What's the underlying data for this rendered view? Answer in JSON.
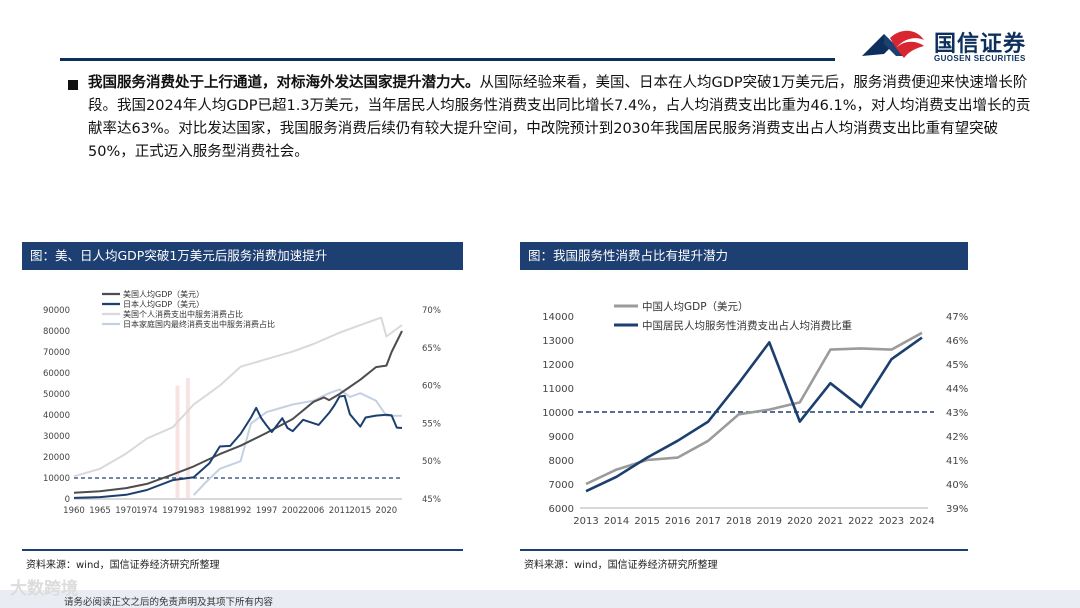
{
  "header": {
    "logo_cn": "国信证券",
    "logo_en": "GUOSEN SECURITIES",
    "logo_colors": {
      "blue": "#0d2f5c",
      "red": "#d7262f"
    }
  },
  "body": {
    "lead": "我国服务消费处于上行通道，对标海外发达国家提升潜力大。",
    "text": "从国际经验来看，美国、日本在人均GDP突破1万美元后，服务消费便迎来快速增长阶段。我国2024年人均GDP已超1.3万美元，当年居民人均服务性消费支出同比增长7.4%，占人均消费支出比重为46.1%，对人均消费支出增长的贡献率达63%。对比发达国家，我国服务消费后续仍有较大提升空间，中改院预计到2030年我国居民服务消费支出占人均消费支出比重有望突破50%，正式迈入服务型消费社会。"
  },
  "left_panel": {
    "title": "图：美、日人均GDP突破1万美元后服务消费加速提升",
    "source": "资料来源：wind，国信证券经济研究所整理"
  },
  "right_panel": {
    "title": "图：我国服务性消费占比有提升潜力",
    "source": "资料来源：wind，国信证券经济研究所整理"
  },
  "footer": {
    "note": "请务必阅读正文之后的免责声明及其项下所有内容",
    "watermark": "大数跨境"
  },
  "colors": {
    "navy": "#1e3f72",
    "dark_gray": "#4d4d4d",
    "light_gray": "#9b9b9b",
    "pale_gray": "#d9d9d9",
    "dark_blue": "#1b3f6e",
    "pale_blue": "#c4d1e3",
    "dash": "#1e3f72"
  },
  "chart_data": [
    {
      "type": "line",
      "title": "",
      "x_ticks": [
        "1960",
        "1965",
        "1970",
        "1974",
        "1979",
        "1983",
        "1988",
        "1992",
        "1997",
        "2002",
        "2006",
        "2011",
        "2015",
        "2020"
      ],
      "xlim": [
        1960,
        2023
      ],
      "y_left": {
        "ticks": [
          "0",
          "10000",
          "20000",
          "30000",
          "40000",
          "50000",
          "60000",
          "70000",
          "80000",
          "90000"
        ],
        "ylim": [
          0,
          90000
        ]
      },
      "y_right": {
        "ticks": [
          "45%",
          "50%",
          "55%",
          "60%",
          "65%",
          "70%"
        ],
        "ylim": [
          45,
          70
        ]
      },
      "reference_line_left": 10000,
      "legend": [
        {
          "name": "美国人均GDP（美元）",
          "color": "#4d4d4d"
        },
        {
          "name": "日本人均GDP（美元）",
          "color": "#1b3f6e"
        },
        {
          "name": "美国个人消费支出中服务消费占比",
          "color": "#d9d9d9"
        },
        {
          "name": "日本家庭国内最终消费支出中服务消费占比",
          "color": "#c4d1e3"
        }
      ],
      "series": [
        {
          "name": "美国人均GDP（美元）",
          "axis": "left",
          "points": [
            [
              1960,
              3000
            ],
            [
              1965,
              3700
            ],
            [
              1970,
              5200
            ],
            [
              1974,
              7200
            ],
            [
              1979,
              11700
            ],
            [
              1983,
              15500
            ],
            [
              1988,
              21400
            ],
            [
              1992,
              25400
            ],
            [
              1997,
              31500
            ],
            [
              2002,
              38100
            ],
            [
              2006,
              46300
            ],
            [
              2008,
              48400
            ],
            [
              2009,
              47100
            ],
            [
              2011,
              50000
            ],
            [
              2015,
              56800
            ],
            [
              2018,
              62800
            ],
            [
              2020,
              63500
            ],
            [
              2021,
              70000
            ],
            [
              2023,
              80000
            ]
          ]
        },
        {
          "name": "日本人均GDP（美元）",
          "axis": "left",
          "points": [
            [
              1960,
              500
            ],
            [
              1965,
              900
            ],
            [
              1970,
              2000
            ],
            [
              1974,
              4300
            ],
            [
              1979,
              9000
            ],
            [
              1983,
              10400
            ],
            [
              1986,
              17000
            ],
            [
              1988,
              25000
            ],
            [
              1990,
              25300
            ],
            [
              1992,
              31000
            ],
            [
              1994,
              38800
            ],
            [
              1995,
              43400
            ],
            [
              1996,
              38400
            ],
            [
              1997,
              35000
            ],
            [
              1998,
              31900
            ],
            [
              2000,
              38500
            ],
            [
              2001,
              33800
            ],
            [
              2002,
              32300
            ],
            [
              2004,
              37700
            ],
            [
              2007,
              35300
            ],
            [
              2009,
              41000
            ],
            [
              2010,
              44500
            ],
            [
              2011,
              48800
            ],
            [
              2012,
              49100
            ],
            [
              2013,
              40400
            ],
            [
              2015,
              34500
            ],
            [
              2016,
              38800
            ],
            [
              2018,
              39700
            ],
            [
              2020,
              40100
            ],
            [
              2021,
              39800
            ],
            [
              2022,
              34000
            ],
            [
              2023,
              33800
            ]
          ]
        },
        {
          "name": "美国个人消费支出中服务消费占比",
          "axis": "right",
          "points": [
            [
              1960,
              48
            ],
            [
              1965,
              49
            ],
            [
              1970,
              51
            ],
            [
              1974,
              53
            ],
            [
              1979,
              54.5
            ],
            [
              1983,
              57.5
            ],
            [
              1988,
              60
            ],
            [
              1992,
              62.5
            ],
            [
              1997,
              63.5
            ],
            [
              2002,
              64.5
            ],
            [
              2006,
              65.5
            ],
            [
              2011,
              67
            ],
            [
              2015,
              68
            ],
            [
              2019,
              69
            ],
            [
              2020,
              66.5
            ],
            [
              2023,
              68
            ]
          ]
        },
        {
          "name": "日本家庭国内最终消费支出中服务消费占比",
          "axis": "right",
          "points": [
            [
              1983,
              45.5
            ],
            [
              1985,
              47
            ],
            [
              1988,
              49
            ],
            [
              1992,
              50
            ],
            [
              1994,
              55
            ],
            [
              1997,
              56.5
            ],
            [
              2002,
              57.5
            ],
            [
              2006,
              58
            ],
            [
              2009,
              59
            ],
            [
              2011,
              59.5
            ],
            [
              2013,
              58.5
            ],
            [
              2015,
              59
            ],
            [
              2018,
              58
            ],
            [
              2020,
              56
            ],
            [
              2023,
              56
            ]
          ]
        }
      ]
    },
    {
      "type": "line",
      "title": "",
      "x_ticks": [
        "2013",
        "2014",
        "2015",
        "2016",
        "2017",
        "2018",
        "2019",
        "2020",
        "2021",
        "2022",
        "2023",
        "2024"
      ],
      "y_left": {
        "ticks": [
          "6000",
          "7000",
          "8000",
          "9000",
          "10000",
          "11000",
          "12000",
          "13000",
          "14000"
        ],
        "ylim": [
          6000,
          14000
        ]
      },
      "y_right": {
        "ticks": [
          "39%",
          "40%",
          "41%",
          "42%",
          "43%",
          "44%",
          "45%",
          "46%",
          "47%"
        ],
        "ylim": [
          39,
          47
        ]
      },
      "reference_line_left": 10000,
      "legend": [
        {
          "name": "中国人均GDP（美元）",
          "color": "#9b9b9b"
        },
        {
          "name": "中国居民人均服务性消费支出占人均消费比重",
          "color": "#1b3f6e"
        }
      ],
      "series": [
        {
          "name": "中国人均GDP（美元）",
          "axis": "left",
          "x": [
            "2013",
            "2014",
            "2015",
            "2016",
            "2017",
            "2018",
            "2019",
            "2020",
            "2021",
            "2022",
            "2023",
            "2024"
          ],
          "values": [
            7000,
            7600,
            8000,
            8100,
            8800,
            9900,
            10100,
            10400,
            12600,
            12650,
            12600,
            13300
          ]
        },
        {
          "name": "中国居民人均服务性消费支出占人均消费比重",
          "axis": "right",
          "x": [
            "2013",
            "2014",
            "2015",
            "2016",
            "2017",
            "2018",
            "2019",
            "2020",
            "2021",
            "2022",
            "2023",
            "2024"
          ],
          "values": [
            39.7,
            40.3,
            41.1,
            41.8,
            42.6,
            44.2,
            45.9,
            42.6,
            44.2,
            43.2,
            45.2,
            46.1
          ]
        }
      ]
    }
  ]
}
